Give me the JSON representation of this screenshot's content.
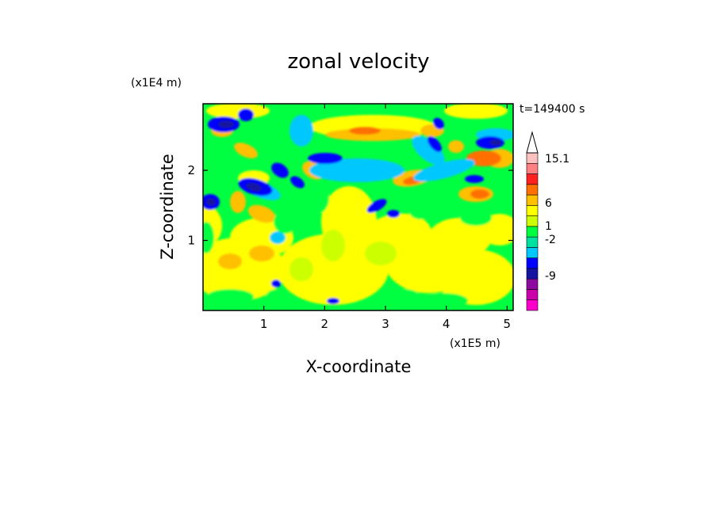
{
  "chart_data": {
    "type": "heatmap",
    "title": "zonal velocity",
    "xlabel": "X-coordinate",
    "ylabel": "Z-coordinate",
    "x_scale_label": "(x1E5 m)",
    "y_scale_label": "(x1E4 m)",
    "time_label": "t=149400 s",
    "x_ticks": [
      1,
      2,
      3,
      4,
      5
    ],
    "y_ticks": [
      1,
      2
    ],
    "xlim": [
      0,
      5.1
    ],
    "ylim": [
      0,
      2.95
    ],
    "colorbar": {
      "labels": [
        "15.1",
        "6",
        "1",
        "-2",
        "-9"
      ],
      "levels": [
        -15,
        -12,
        -9,
        -6,
        -4,
        -2,
        -1,
        0,
        1,
        2,
        4,
        6,
        9,
        12,
        15.1
      ],
      "colors": [
        "#ff00cc",
        "#cc00aa",
        "#8c0aa0",
        "#1414a0",
        "#0000ff",
        "#00c8ff",
        "#00e0a0",
        "#00ff40",
        "#ccff00",
        "#ffff00",
        "#ffc000",
        "#ff7000",
        "#ff2020",
        "#ff8080",
        "#ffc0c0"
      ],
      "extend_max": true
    }
  }
}
